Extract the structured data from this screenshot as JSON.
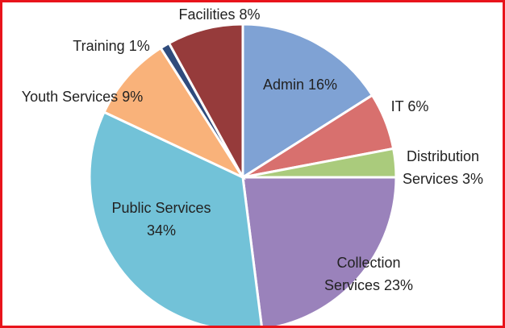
{
  "chart_data": {
    "type": "pie",
    "categories": [
      "Admin",
      "IT",
      "Distribution Services",
      "Collection Services",
      "Public Services",
      "Youth Services",
      "Training",
      "Facilities"
    ],
    "values": [
      16,
      6,
      3,
      23,
      34,
      9,
      1,
      8
    ],
    "value_labels": [
      "16%",
      "6%",
      "3%",
      "23%",
      "34%",
      "9%",
      "1%",
      "8%"
    ],
    "colors": [
      "#7fa2d4",
      "#d8706e",
      "#aacb7c",
      "#9a82bb",
      "#72c2d8",
      "#f9b27a",
      "#2f4b7c",
      "#963b3b"
    ]
  }
}
